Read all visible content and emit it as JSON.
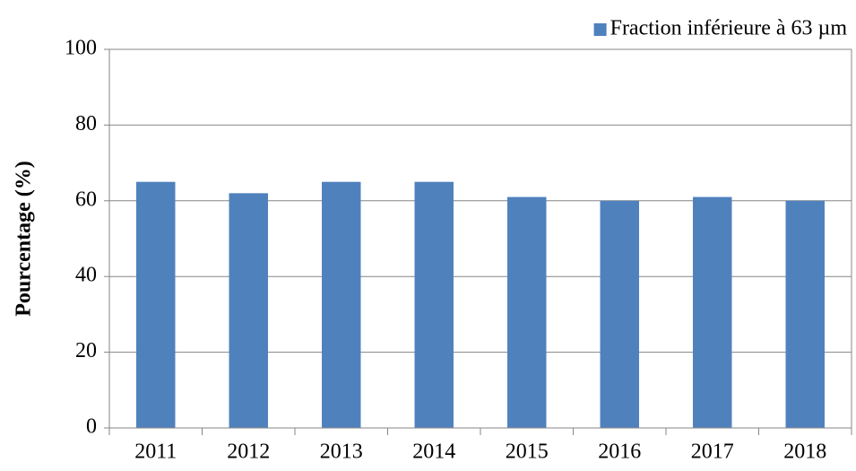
{
  "chart_data": {
    "type": "bar",
    "y_label": "Pourcentage (%)",
    "categories": [
      "2011",
      "2012",
      "2013",
      "2014",
      "2015",
      "2016",
      "2017",
      "2018"
    ],
    "series": [
      {
        "name": "Fraction inférieure à 63 µm",
        "color": "#4f81bd",
        "values": [
          65,
          62,
          65,
          65,
          61,
          60,
          61,
          60
        ]
      }
    ],
    "ylim": [
      0,
      100
    ],
    "yticks": [
      0,
      20,
      40,
      60,
      80,
      100
    ],
    "grid": true,
    "legend": "top-right"
  }
}
